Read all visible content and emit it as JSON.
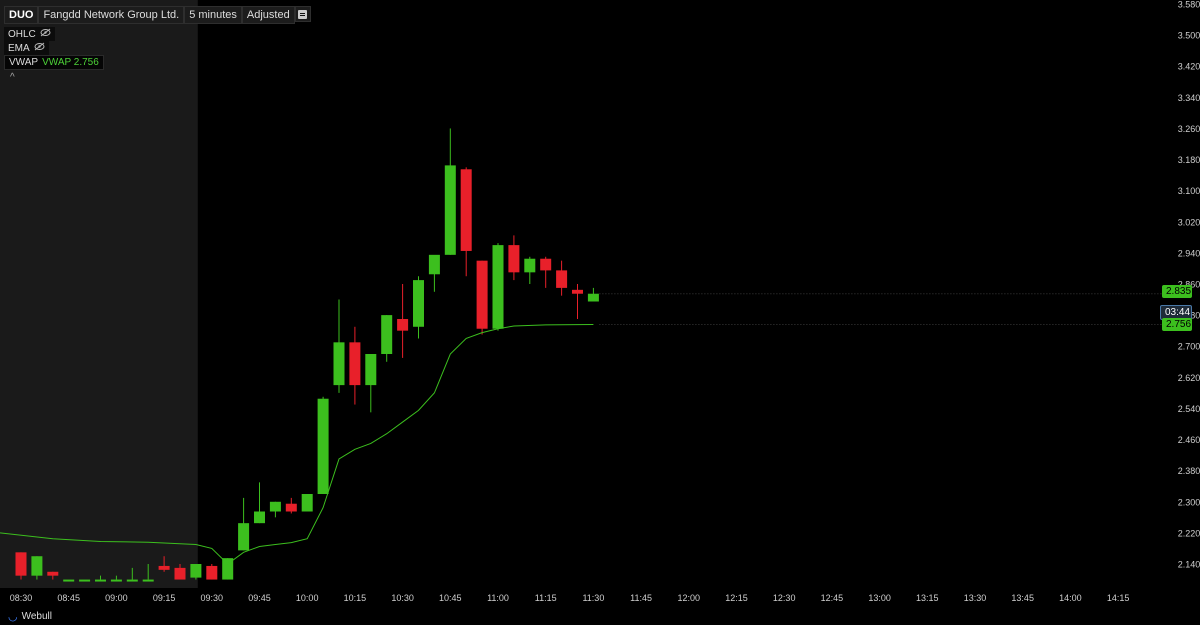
{
  "header": {
    "symbol": "DUO",
    "company": "Fangdd Network Group Ltd.",
    "interval": "5 minutes",
    "adjustment": "Adjusted"
  },
  "indicators": [
    {
      "label": "OHLC",
      "icon": "eye-slash-icon"
    },
    {
      "label": "EMA",
      "icon": "eye-slash-icon"
    },
    {
      "label": "VWAP",
      "value_label": "VWAP 2.756"
    }
  ],
  "price_tags": {
    "close": "2.835",
    "timer": "03:44",
    "vwap": "2.756"
  },
  "footer": {
    "brand": "Webull"
  },
  "colors": {
    "up": "#3cbf1e",
    "down": "#e8202a",
    "vwap": "#3cbf1e",
    "premarket_bg": "#1a1a1a"
  },
  "chart_data": {
    "type": "candlestick",
    "y_ticks": [
      "3.580",
      "3.500",
      "3.420",
      "3.340",
      "3.260",
      "3.180",
      "3.100",
      "3.020",
      "2.940",
      "2.860",
      "2.780",
      "2.700",
      "2.620",
      "2.540",
      "2.460",
      "2.380",
      "2.300",
      "2.220",
      "2.140"
    ],
    "x_ticks": [
      "08:30",
      "08:45",
      "09:00",
      "09:15",
      "09:30",
      "09:45",
      "10:00",
      "10:15",
      "10:30",
      "10:45",
      "11:00",
      "11:15",
      "11:30",
      "11:45",
      "12:00",
      "12:15",
      "12:30",
      "12:45",
      "13:00",
      "13:15",
      "13:30",
      "13:45",
      "14:00",
      "14:15"
    ],
    "ylim": [
      2.1,
      3.58
    ],
    "premarket_end": "09:30",
    "candles": [
      {
        "t": "08:30",
        "o": 2.17,
        "h": 2.17,
        "l": 2.1,
        "c": 2.11
      },
      {
        "t": "08:35",
        "o": 2.11,
        "h": 2.16,
        "l": 2.1,
        "c": 2.16
      },
      {
        "t": "08:40",
        "o": 2.12,
        "h": 2.12,
        "l": 2.1,
        "c": 2.11
      },
      {
        "t": "08:45",
        "o": 2.1,
        "h": 2.1,
        "l": 2.1,
        "c": 2.1
      },
      {
        "t": "08:50",
        "o": 2.1,
        "h": 2.1,
        "l": 2.1,
        "c": 2.1
      },
      {
        "t": "08:55",
        "o": 2.1,
        "h": 2.11,
        "l": 2.1,
        "c": 2.1
      },
      {
        "t": "09:00",
        "o": 2.1,
        "h": 2.11,
        "l": 2.1,
        "c": 2.1
      },
      {
        "t": "09:05",
        "o": 2.1,
        "h": 2.13,
        "l": 2.1,
        "c": 2.1
      },
      {
        "t": "09:10",
        "o": 2.1,
        "h": 2.14,
        "l": 2.1,
        "c": 2.1
      },
      {
        "t": "09:15",
        "o": 2.135,
        "h": 2.16,
        "l": 2.12,
        "c": 2.125
      },
      {
        "t": "09:20",
        "o": 2.13,
        "h": 2.14,
        "l": 2.1,
        "c": 2.1
      },
      {
        "t": "09:25",
        "o": 2.105,
        "h": 2.14,
        "l": 2.1,
        "c": 2.14
      },
      {
        "t": "09:30",
        "o": 2.135,
        "h": 2.14,
        "l": 2.1,
        "c": 2.1
      },
      {
        "t": "09:35",
        "o": 2.1,
        "h": 2.155,
        "l": 2.1,
        "c": 2.155
      },
      {
        "t": "09:40",
        "o": 2.175,
        "h": 2.31,
        "l": 2.175,
        "c": 2.245
      },
      {
        "t": "09:45",
        "o": 2.245,
        "h": 2.35,
        "l": 2.245,
        "c": 2.275
      },
      {
        "t": "09:50",
        "o": 2.275,
        "h": 2.3,
        "l": 2.26,
        "c": 2.3
      },
      {
        "t": "09:55",
        "o": 2.295,
        "h": 2.31,
        "l": 2.27,
        "c": 2.275
      },
      {
        "t": "10:00",
        "o": 2.275,
        "h": 2.32,
        "l": 2.275,
        "c": 2.32
      },
      {
        "t": "10:05",
        "o": 2.32,
        "h": 2.57,
        "l": 2.32,
        "c": 2.565
      },
      {
        "t": "10:10",
        "o": 2.6,
        "h": 2.82,
        "l": 2.58,
        "c": 2.71
      },
      {
        "t": "10:15",
        "o": 2.71,
        "h": 2.75,
        "l": 2.55,
        "c": 2.6
      },
      {
        "t": "10:20",
        "o": 2.6,
        "h": 2.68,
        "l": 2.53,
        "c": 2.68
      },
      {
        "t": "10:25",
        "o": 2.68,
        "h": 2.78,
        "l": 2.66,
        "c": 2.78
      },
      {
        "t": "10:30",
        "o": 2.77,
        "h": 2.86,
        "l": 2.67,
        "c": 2.74
      },
      {
        "t": "10:35",
        "o": 2.75,
        "h": 2.88,
        "l": 2.72,
        "c": 2.87
      },
      {
        "t": "10:40",
        "o": 2.885,
        "h": 2.93,
        "l": 2.84,
        "c": 2.935
      },
      {
        "t": "10:45",
        "o": 2.935,
        "h": 3.26,
        "l": 2.935,
        "c": 3.165
      },
      {
        "t": "10:50",
        "o": 3.155,
        "h": 3.16,
        "l": 2.88,
        "c": 2.945
      },
      {
        "t": "10:55",
        "o": 2.92,
        "h": 2.92,
        "l": 2.73,
        "c": 2.745
      },
      {
        "t": "11:00",
        "o": 2.745,
        "h": 2.965,
        "l": 2.74,
        "c": 2.96
      },
      {
        "t": "11:05",
        "o": 2.96,
        "h": 2.985,
        "l": 2.87,
        "c": 2.89
      },
      {
        "t": "11:10",
        "o": 2.89,
        "h": 2.93,
        "l": 2.86,
        "c": 2.925
      },
      {
        "t": "11:15",
        "o": 2.925,
        "h": 2.93,
        "l": 2.85,
        "c": 2.895
      },
      {
        "t": "11:20",
        "o": 2.895,
        "h": 2.92,
        "l": 2.83,
        "c": 2.85
      },
      {
        "t": "11:25",
        "o": 2.845,
        "h": 2.86,
        "l": 2.77,
        "c": 2.835
      },
      {
        "t": "11:30",
        "o": 2.815,
        "h": 2.85,
        "l": 2.815,
        "c": 2.835
      }
    ],
    "vwap": [
      {
        "t": "08:30",
        "v": 2.22
      },
      {
        "t": "08:40",
        "v": 2.205
      },
      {
        "t": "08:55",
        "v": 2.198
      },
      {
        "t": "09:10",
        "v": 2.196
      },
      {
        "t": "09:25",
        "v": 2.19
      },
      {
        "t": "09:30",
        "v": 2.18
      },
      {
        "t": "09:35",
        "v": 2.14
      },
      {
        "t": "09:40",
        "v": 2.17
      },
      {
        "t": "09:45",
        "v": 2.185
      },
      {
        "t": "09:50",
        "v": 2.19
      },
      {
        "t": "09:55",
        "v": 2.195
      },
      {
        "t": "10:00",
        "v": 2.205
      },
      {
        "t": "10:05",
        "v": 2.285
      },
      {
        "t": "10:10",
        "v": 2.41
      },
      {
        "t": "10:15",
        "v": 2.435
      },
      {
        "t": "10:20",
        "v": 2.45
      },
      {
        "t": "10:25",
        "v": 2.475
      },
      {
        "t": "10:30",
        "v": 2.505
      },
      {
        "t": "10:35",
        "v": 2.535
      },
      {
        "t": "10:40",
        "v": 2.58
      },
      {
        "t": "10:45",
        "v": 2.68
      },
      {
        "t": "10:50",
        "v": 2.72
      },
      {
        "t": "10:55",
        "v": 2.735
      },
      {
        "t": "11:00",
        "v": 2.745
      },
      {
        "t": "11:05",
        "v": 2.752
      },
      {
        "t": "11:15",
        "v": 2.755
      },
      {
        "t": "11:30",
        "v": 2.756
      }
    ]
  }
}
